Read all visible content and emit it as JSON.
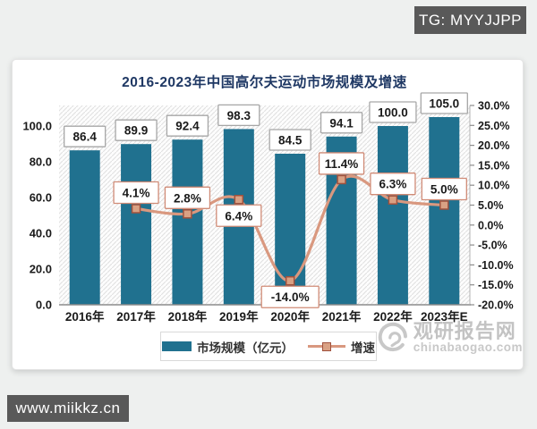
{
  "page": {
    "tg_badge": "TG: MYYJJPP",
    "site_badge": "www.miikkz.cn"
  },
  "watermark": {
    "name": "观研报告网",
    "url": "chinabaogao.com"
  },
  "chart_data": {
    "type": "bar",
    "title": "2016-2023年中国高尔夫运动市场规模及增速",
    "categories": [
      "2016年",
      "2017年",
      "2018年",
      "2019年",
      "2020年",
      "2021年",
      "2022年",
      "2023年E"
    ],
    "series": [
      {
        "name": "市场规模（亿元）",
        "type": "bar",
        "axis": "left",
        "values": [
          86.4,
          89.9,
          92.4,
          98.3,
          84.5,
          94.1,
          100.0,
          105.0
        ],
        "labels": [
          "86.4",
          "89.9",
          "92.4",
          "98.3",
          "84.5",
          "94.1",
          "100.0",
          "105.0"
        ],
        "color": "#20718f"
      },
      {
        "name": "增速",
        "type": "line",
        "axis": "right",
        "start_index": 1,
        "values": [
          4.1,
          2.8,
          6.4,
          -14.0,
          11.4,
          6.3,
          5.0
        ],
        "labels": [
          "4.1%",
          "2.8%",
          "6.4%",
          "-14.0%",
          "11.4%",
          "6.3%",
          "5.0%"
        ],
        "label_side": [
          "above",
          "above",
          "below",
          "below",
          "above",
          "above",
          "above"
        ],
        "color": "#d9987f",
        "marker_fill": "#d9a184",
        "marker_border": "#a0513d"
      }
    ],
    "left_axis": {
      "ticks": [
        "0.0",
        "20.0",
        "40.0",
        "60.0",
        "80.0",
        "100.0"
      ],
      "tick_values": [
        0,
        20,
        40,
        60,
        80,
        100
      ],
      "max": 111.5
    },
    "right_axis": {
      "ticks": [
        "30.0%",
        "25.0%",
        "20.0%",
        "15.0%",
        "10.0%",
        "5.0%",
        "0.0%",
        "-5.0%",
        "-10.0%",
        "-15.0%",
        "-20.0%"
      ],
      "tick_values": [
        30,
        25,
        20,
        15,
        10,
        5,
        0,
        -5,
        -10,
        -15,
        -20
      ],
      "min": -20,
      "max": 30
    },
    "legend": [
      "市场规模（亿元）",
      "增速"
    ],
    "legend_position": "bottom",
    "grid": false,
    "colors": {
      "title": "#1f3864",
      "bar_label_border": "#a6a6a6",
      "line_label_border": "#d08b76",
      "axis_text": "#1a1a1a"
    }
  }
}
